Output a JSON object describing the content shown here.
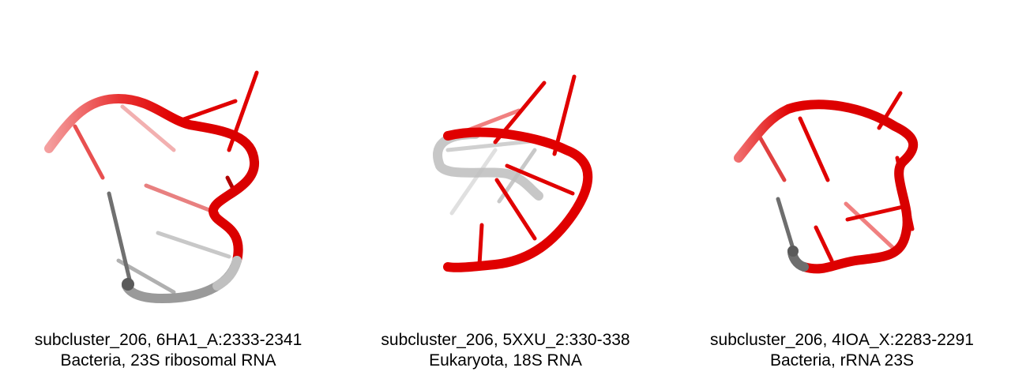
{
  "panels": [
    {
      "id": "6HA1_A",
      "line1": "subcluster_206, 6HA1_A:2333-2341",
      "line2": "Bacteria, 23S ribosomal RNA"
    },
    {
      "id": "5XXU_2",
      "line1": "subcluster_206, 5XXU_2:330-338",
      "line2": "Eukaryota, 18S RNA"
    },
    {
      "id": "4IOA_X",
      "line1": "subcluster_206, 4IOA_X:2283-2291",
      "line2": "Bacteria, rRNA 23S"
    }
  ],
  "colors": {
    "backbone_red": "#e00000",
    "backbone_grey": "#6e6e6e",
    "background": "#ffffff"
  }
}
